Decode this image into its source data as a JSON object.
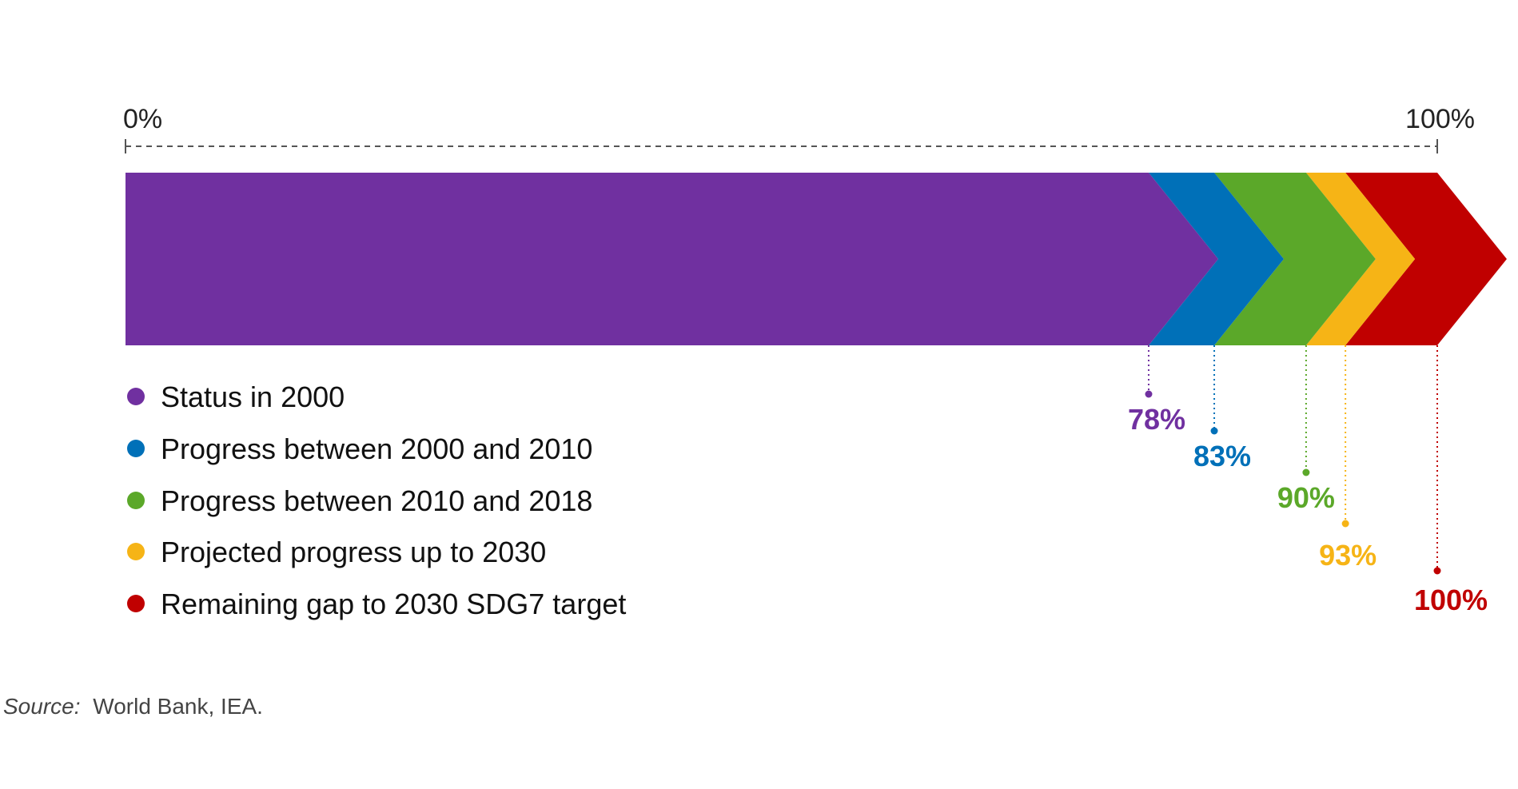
{
  "chart_data": {
    "type": "bar",
    "orientation": "horizontal-stacked-chevron",
    "axis": {
      "min": 0,
      "max": 100,
      "start_label": "0%",
      "end_label": "100%"
    },
    "series": [
      {
        "name": "Status in 2000",
        "cumulative": 78,
        "label": "78%",
        "color": "#7030A0"
      },
      {
        "name": "Progress between 2000 and 2010",
        "cumulative": 83,
        "label": "83%",
        "color": "#0070B8"
      },
      {
        "name": "Progress between 2010 and 2018",
        "cumulative": 90,
        "label": "90%",
        "color": "#5BA829"
      },
      {
        "name": "Projected progress up to 2030",
        "cumulative": 93,
        "label": "93%",
        "color": "#F6B416"
      },
      {
        "name": "Remaining gap to 2030 SDG7 target",
        "cumulative": 100,
        "label": "100%",
        "color": "#C00000"
      }
    ],
    "legend": "bottom-left"
  },
  "source": {
    "prefix": "Source:",
    "text": "World Bank, IEA."
  }
}
